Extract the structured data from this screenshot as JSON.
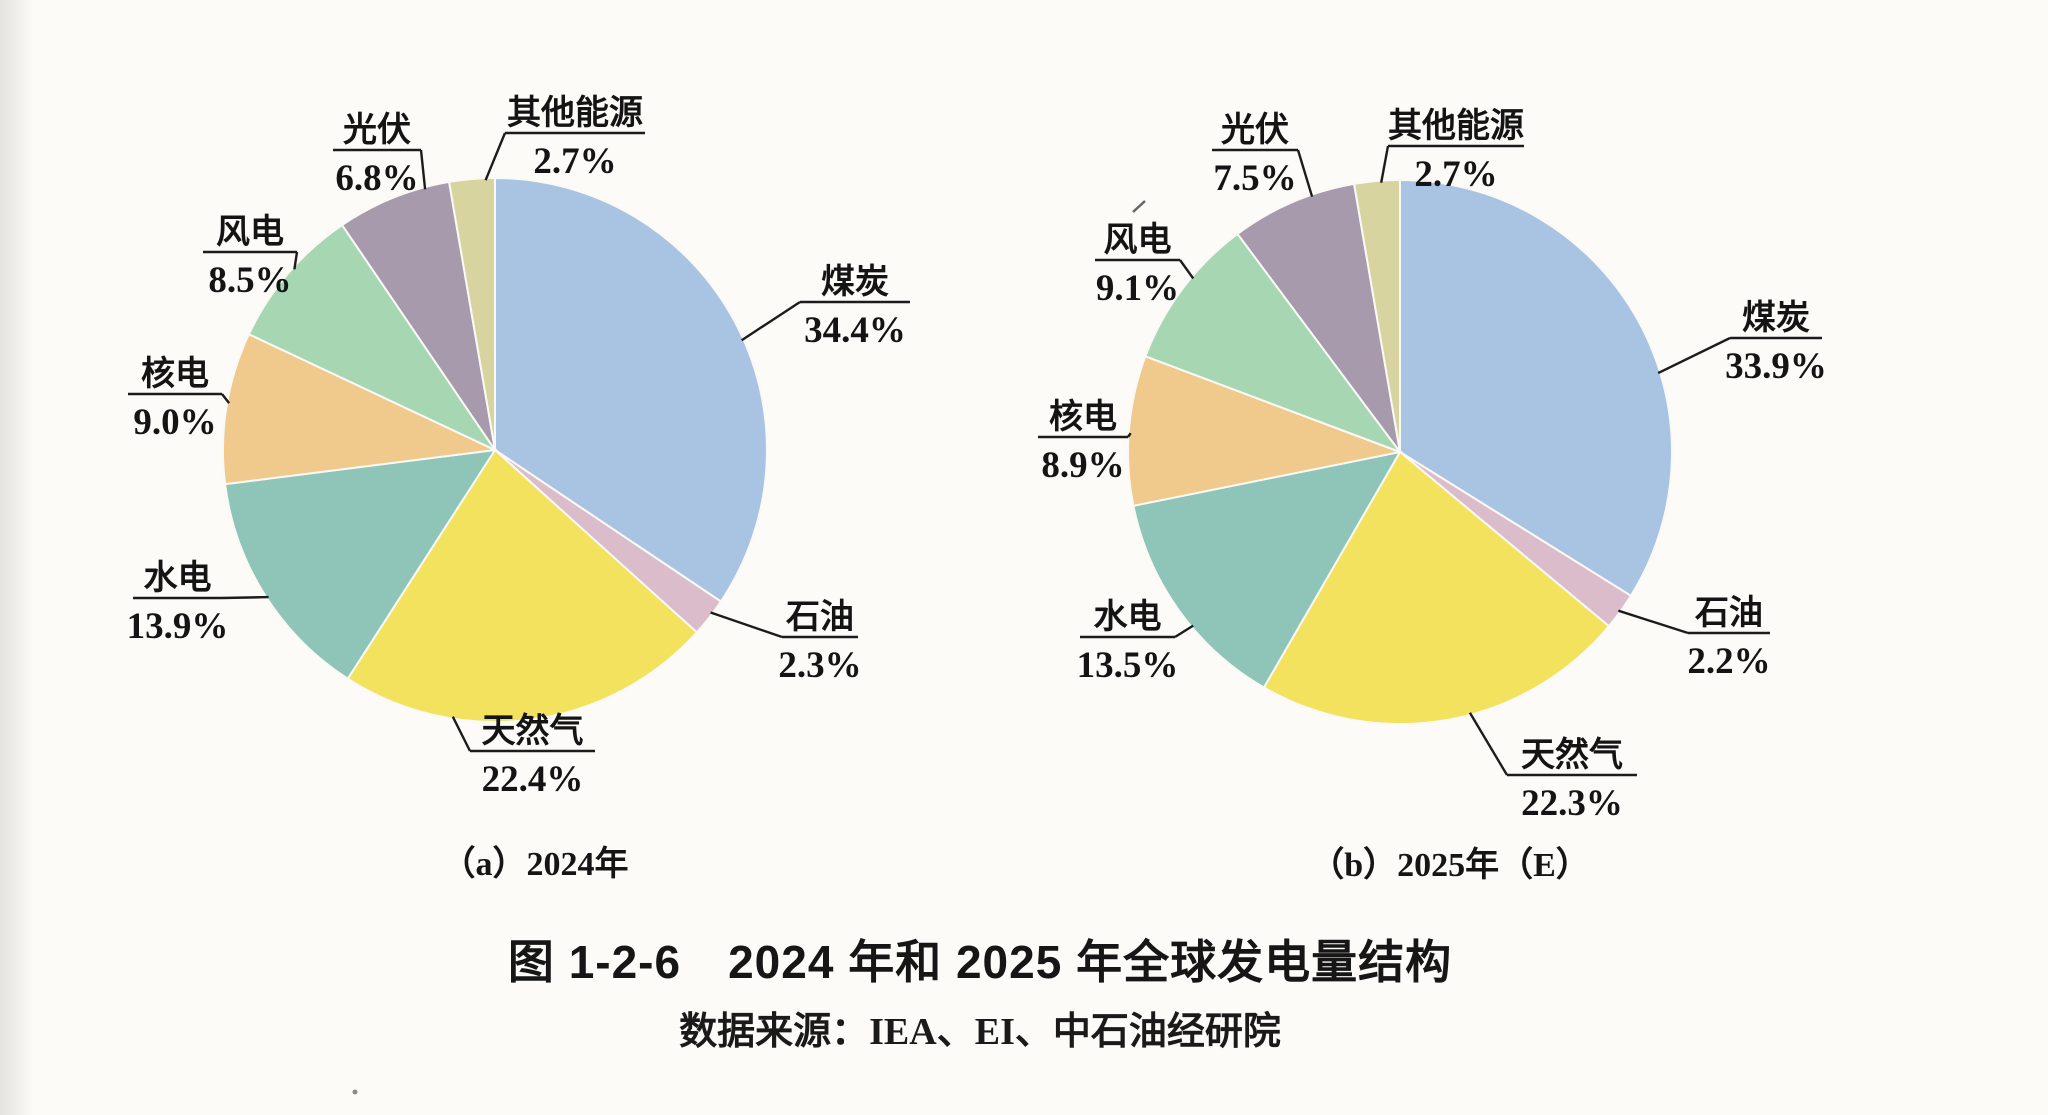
{
  "figure": {
    "title": "图 1-2-6　2024 年和 2025 年全球发电量结构",
    "source": "数据来源：IEA、EI、中石油经研院"
  },
  "colors": {
    "coal": "#a9c4e2",
    "oil": "#dbbcca",
    "natural_gas": "#f2e25e",
    "hydro": "#8fc5b9",
    "nuclear": "#f0c98d",
    "wind": "#a6d7b2",
    "solar_pv": "#a79aad",
    "other": "#d8d4a0",
    "line": "#1c1c1c"
  },
  "chart_data": [
    {
      "type": "pie",
      "caption": "（a）2024年",
      "unit": "%",
      "start_angle_deg": 0,
      "direction": "clockwise",
      "slices": [
        {
          "key": "coal",
          "label": "煤炭",
          "value": 34.4
        },
        {
          "key": "oil",
          "label": "石油",
          "value": 2.3
        },
        {
          "key": "natural_gas",
          "label": "天然气",
          "value": 22.4
        },
        {
          "key": "hydro",
          "label": "水电",
          "value": 13.9
        },
        {
          "key": "nuclear",
          "label": "核电",
          "value": 9.0
        },
        {
          "key": "wind",
          "label": "风电",
          "value": 8.5
        },
        {
          "key": "solar_pv",
          "label": "光伏",
          "value": 6.8
        },
        {
          "key": "other",
          "label": "其他能源",
          "value": 2.7
        }
      ]
    },
    {
      "type": "pie",
      "caption": "（b）2025年（E）",
      "unit": "%",
      "start_angle_deg": 0,
      "direction": "clockwise",
      "slices": [
        {
          "key": "coal",
          "label": "煤炭",
          "value": 33.9
        },
        {
          "key": "oil",
          "label": "石油",
          "value": 2.2
        },
        {
          "key": "natural_gas",
          "label": "天然气",
          "value": 22.3
        },
        {
          "key": "hydro",
          "label": "水电",
          "value": 13.5
        },
        {
          "key": "nuclear",
          "label": "核电",
          "value": 8.9
        },
        {
          "key": "wind",
          "label": "风电",
          "value": 9.1
        },
        {
          "key": "solar_pv",
          "label": "光伏",
          "value": 7.5
        },
        {
          "key": "other",
          "label": "其他能源",
          "value": 2.7
        }
      ]
    }
  ]
}
